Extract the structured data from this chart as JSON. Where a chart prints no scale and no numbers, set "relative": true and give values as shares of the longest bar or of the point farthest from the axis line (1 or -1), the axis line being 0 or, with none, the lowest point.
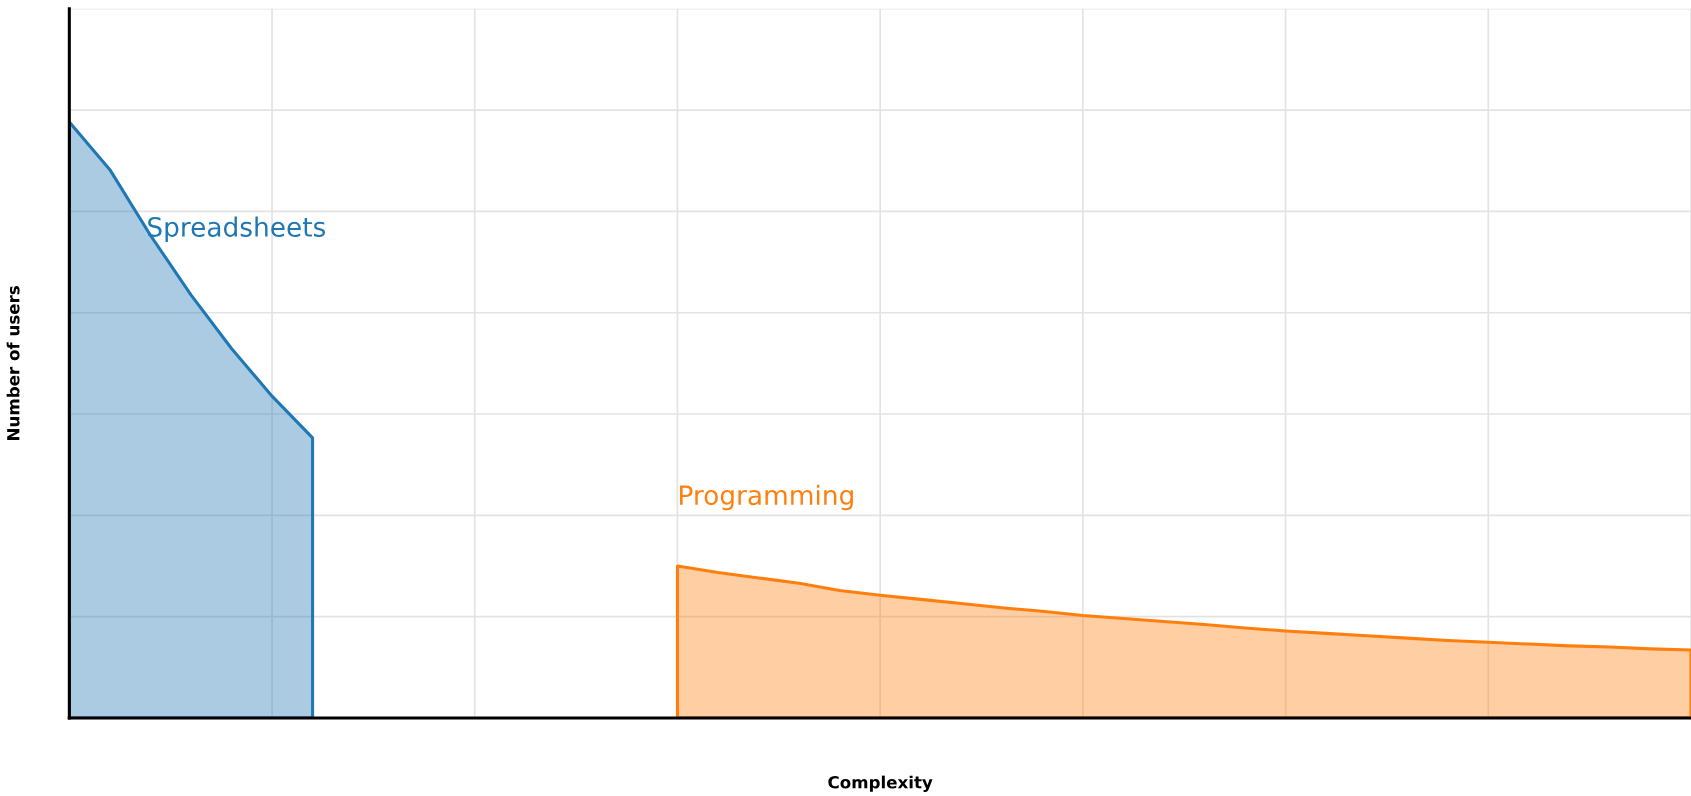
{
  "chart_data": {
    "type": "area",
    "relative": true,
    "xlabel": "Complexity",
    "ylabel": "Number of users",
    "grid": true,
    "legend": false,
    "categories": [
      null,
      null,
      null,
      null,
      null,
      null,
      null,
      null,
      null,
      null,
      null,
      null,
      null,
      null,
      null,
      null,
      null,
      null,
      null,
      null,
      null,
      null,
      null,
      null,
      null,
      null,
      null,
      null,
      null,
      null,
      null,
      null,
      null,
      null,
      null,
      null,
      null,
      null,
      null,
      null,
      null
    ],
    "series": [
      {
        "name": "Spreadsheets",
        "color": "#1f77b4",
        "values": [
          1.0,
          0.92,
          0.81,
          0.71,
          0.62,
          0.54,
          0.47,
          null,
          null,
          null,
          null,
          null,
          null,
          null,
          null,
          null,
          null,
          null,
          null,
          null,
          null,
          null,
          null,
          null,
          null,
          null,
          null,
          null,
          null,
          null,
          null,
          null,
          null,
          null,
          null,
          null,
          null,
          null,
          null,
          null,
          null
        ]
      },
      {
        "name": "Programming",
        "color": "#ff7f0e",
        "values": [
          null,
          null,
          null,
          null,
          null,
          null,
          null,
          null,
          null,
          null,
          null,
          null,
          null,
          null,
          null,
          0.255,
          0.244,
          0.235,
          0.226,
          0.214,
          0.206,
          0.199,
          0.192,
          0.185,
          0.179,
          0.172,
          0.167,
          0.162,
          0.157,
          0.151,
          0.146,
          0.142,
          0.138,
          0.134,
          0.13,
          0.127,
          0.124,
          0.121,
          0.119,
          0.116,
          0.114
        ]
      }
    ]
  }
}
